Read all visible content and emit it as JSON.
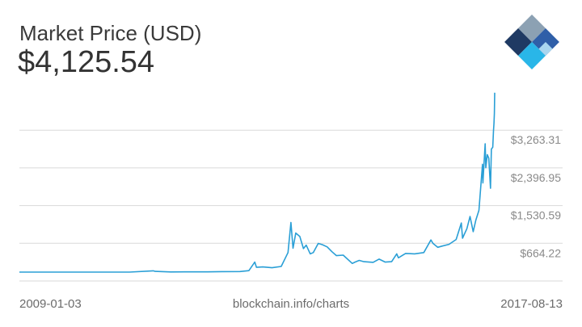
{
  "header": {
    "title": "Market Price (USD)",
    "value": "$4,125.54"
  },
  "footer": {
    "start_date": "2009-01-03",
    "source": "blockchain.info/charts",
    "end_date": "2017-08-13"
  },
  "logo": {
    "icon": "blockchain-logo-icon"
  },
  "colors": {
    "line": "#2a9fd6",
    "grid": "#d9d9d9",
    "tick_text": "#8a8a8a",
    "logo_dark": "#1f3a63",
    "logo_mid": "#2f5fa8",
    "logo_light": "#29b6e8",
    "logo_gray": "#8ca1b3",
    "logo_pale": "#a9d6ef"
  },
  "chart_data": {
    "type": "line",
    "title": "Market Price (USD)",
    "xlabel": "",
    "ylabel": "",
    "x_range": [
      "2009-01-03",
      "2017-08-13"
    ],
    "ylim": [
      -203.5,
      4400
    ],
    "y_ticks": [
      664.22,
      1530.59,
      2396.95,
      3263.31
    ],
    "y_tick_labels": [
      "$664.22",
      "$1,530.59",
      "$2,396.95",
      "$3,263.31"
    ],
    "grid": true,
    "legend": "none",
    "series": [
      {
        "values": [
          [
            "2009-01-03",
            0
          ],
          [
            "2010-01-01",
            0
          ],
          [
            "2010-07-17",
            0.05
          ],
          [
            "2011-01-01",
            0.3
          ],
          [
            "2011-06-08",
            30
          ],
          [
            "2011-06-20",
            17
          ],
          [
            "2011-10-01",
            5
          ],
          [
            "2012-01-01",
            6
          ],
          [
            "2012-06-01",
            6
          ],
          [
            "2012-09-01",
            12
          ],
          [
            "2013-01-01",
            14
          ],
          [
            "2013-03-01",
            35
          ],
          [
            "2013-04-09",
            230
          ],
          [
            "2013-04-20",
            110
          ],
          [
            "2013-06-01",
            120
          ],
          [
            "2013-08-01",
            100
          ],
          [
            "2013-10-01",
            130
          ],
          [
            "2013-11-15",
            450
          ],
          [
            "2013-12-04",
            1140
          ],
          [
            "2013-12-18",
            550
          ],
          [
            "2014-01-05",
            900
          ],
          [
            "2014-02-01",
            820
          ],
          [
            "2014-02-25",
            540
          ],
          [
            "2014-03-15",
            620
          ],
          [
            "2014-04-11",
            420
          ],
          [
            "2014-05-01",
            450
          ],
          [
            "2014-06-03",
            660
          ],
          [
            "2014-07-01",
            630
          ],
          [
            "2014-08-01",
            580
          ],
          [
            "2014-09-01",
            470
          ],
          [
            "2014-10-01",
            380
          ],
          [
            "2014-11-15",
            390
          ],
          [
            "2015-01-14",
            200
          ],
          [
            "2015-02-01",
            230
          ],
          [
            "2015-03-01",
            270
          ],
          [
            "2015-04-01",
            240
          ],
          [
            "2015-06-01",
            225
          ],
          [
            "2015-07-10",
            300
          ],
          [
            "2015-08-20",
            230
          ],
          [
            "2015-10-01",
            240
          ],
          [
            "2015-11-04",
            420
          ],
          [
            "2015-11-15",
            330
          ],
          [
            "2016-01-01",
            430
          ],
          [
            "2016-03-01",
            420
          ],
          [
            "2016-05-01",
            450
          ],
          [
            "2016-06-17",
            740
          ],
          [
            "2016-07-01",
            660
          ],
          [
            "2016-08-01",
            570
          ],
          [
            "2016-09-01",
            600
          ],
          [
            "2016-10-15",
            640
          ],
          [
            "2016-12-01",
            750
          ],
          [
            "2017-01-04",
            1130
          ],
          [
            "2017-01-12",
            780
          ],
          [
            "2017-02-10",
            1000
          ],
          [
            "2017-03-03",
            1280
          ],
          [
            "2017-03-24",
            930
          ],
          [
            "2017-04-10",
            1190
          ],
          [
            "2017-05-01",
            1420
          ],
          [
            "2017-05-24",
            2480
          ],
          [
            "2017-05-27",
            2050
          ],
          [
            "2017-06-11",
            2950
          ],
          [
            "2017-06-15",
            2400
          ],
          [
            "2017-06-25",
            2700
          ],
          [
            "2017-07-05",
            2620
          ],
          [
            "2017-07-16",
            1930
          ],
          [
            "2017-07-22",
            2830
          ],
          [
            "2017-07-31",
            2870
          ],
          [
            "2017-08-05",
            3250
          ],
          [
            "2017-08-08",
            3420
          ],
          [
            "2017-08-11",
            3650
          ],
          [
            "2017-08-13",
            4125.54
          ]
        ]
      }
    ]
  }
}
